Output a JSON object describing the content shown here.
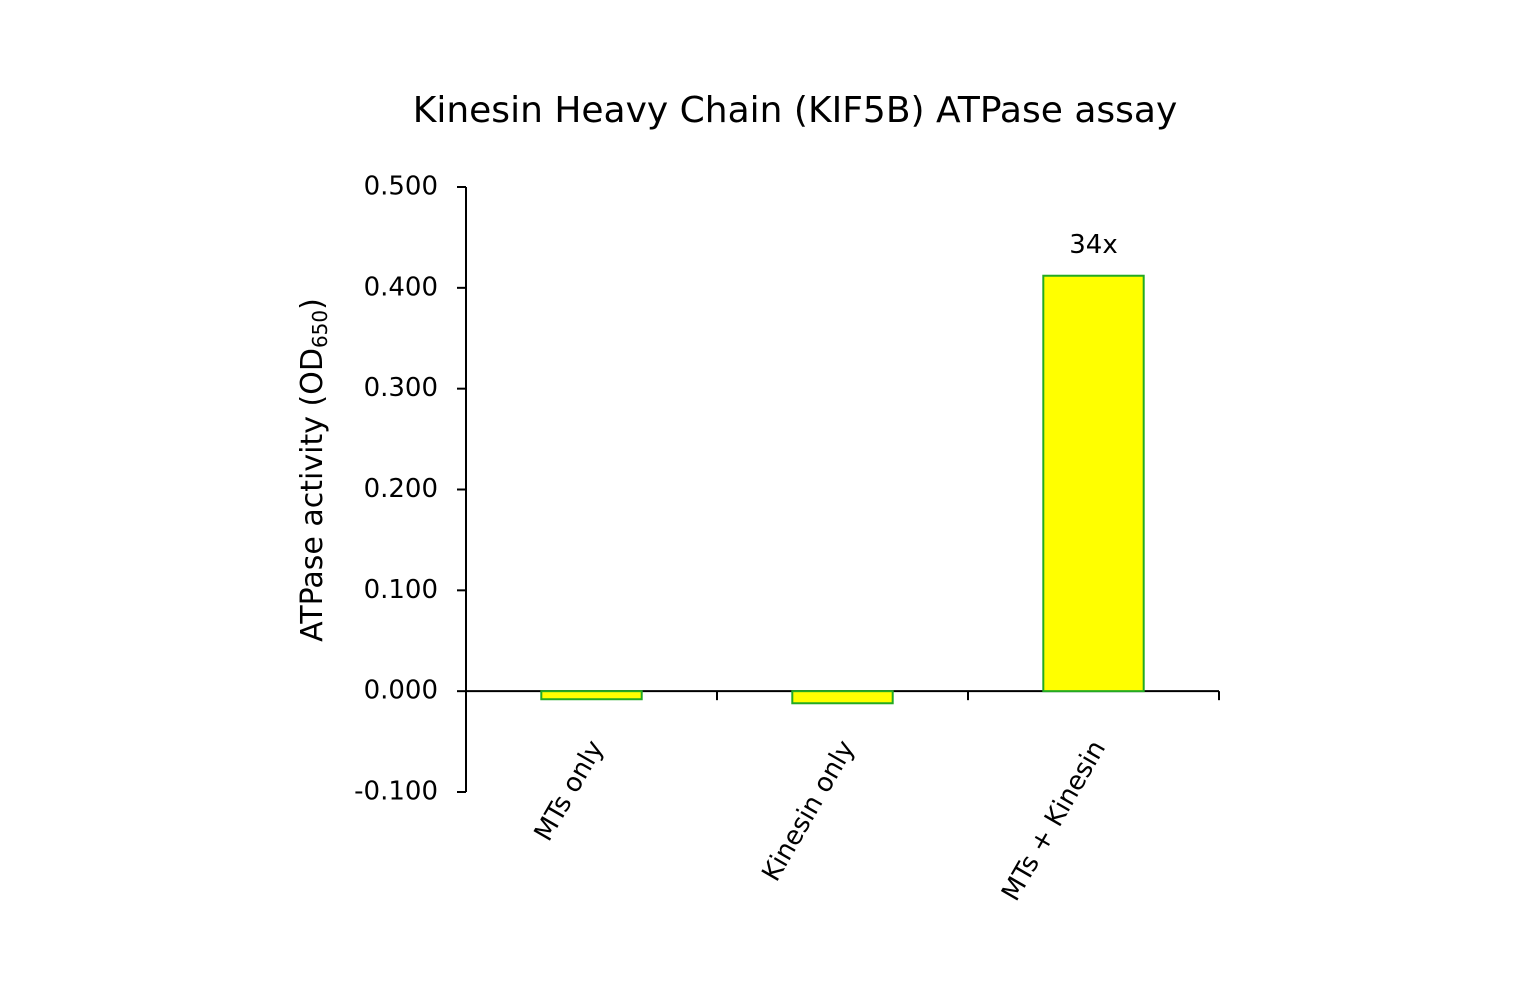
{
  "chart_data": {
    "type": "bar",
    "title": "Kinesin Heavy Chain (KIF5B) ATPase assay",
    "ylabel": {
      "text": "ATPase activity (OD",
      "subscript": "650",
      "suffix": ")"
    },
    "categories": [
      "MTs only",
      "Kinesin only",
      "MTs + Kinesin"
    ],
    "values": [
      -0.008,
      -0.012,
      0.412
    ],
    "color": "#ffff00",
    "edge_color": "#22aa22",
    "ylim": [
      -0.1,
      0.5
    ],
    "yticks": [
      {
        "value": -0.1,
        "label": "-0.100"
      },
      {
        "value": 0,
        "label": "0.000"
      },
      {
        "value": 0.1,
        "label": "0.100"
      },
      {
        "value": 0.2,
        "label": "0.200"
      },
      {
        "value": 0.3,
        "label": "0.300"
      },
      {
        "value": 0.4,
        "label": "0.400"
      },
      {
        "value": 0.5,
        "label": "0.500"
      }
    ],
    "annotations": [
      {
        "category": "MTs + Kinesin",
        "text": "34x"
      }
    ]
  }
}
